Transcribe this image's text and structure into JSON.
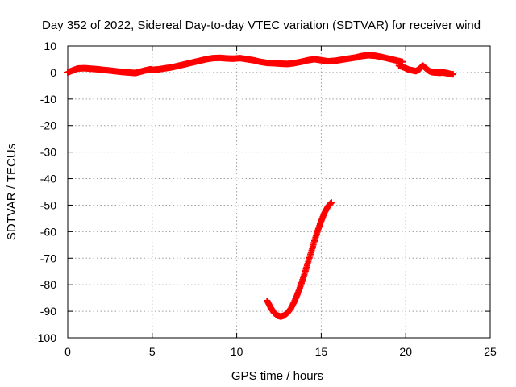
{
  "chart_data": {
    "type": "scatter",
    "title": "Day 352 of 2022, Sidereal Day-to-day VTEC variation (SDTVAR) for receiver wind",
    "xlabel": "GPS time / hours",
    "ylabel": "SDTVAR / TECUs",
    "xlim": [
      0,
      25
    ],
    "ylim": [
      -100,
      10
    ],
    "xticks": [
      0,
      5,
      10,
      15,
      20,
      25
    ],
    "yticks": [
      10,
      0,
      -10,
      -20,
      -30,
      -40,
      -50,
      -60,
      -70,
      -80,
      -90,
      -100
    ],
    "grid": true,
    "legend": "none",
    "marker": "plus",
    "series": [
      {
        "name": "main",
        "color": "#ff0000",
        "x": [
          0.0,
          0.3,
          0.6,
          1.0,
          1.4,
          1.8,
          2.0,
          2.4,
          2.8,
          3.2,
          3.6,
          4.0,
          4.3,
          4.6,
          4.9,
          5.0,
          5.4,
          5.8,
          6.2,
          6.6,
          7.0,
          7.4,
          7.8,
          8.2,
          8.6,
          9.0,
          9.4,
          9.8,
          10.2,
          10.6,
          11.0,
          11.4,
          11.8,
          12.2,
          12.6,
          13.0,
          13.4,
          13.8,
          14.2,
          14.6,
          15.0,
          15.4,
          15.8,
          16.2,
          16.6,
          17.0,
          17.4,
          17.8,
          18.2,
          18.6,
          19.0,
          19.4,
          19.8
        ],
        "y": [
          0.0,
          0.8,
          1.5,
          1.6,
          1.4,
          1.2,
          1.0,
          0.8,
          0.5,
          0.2,
          0.0,
          -0.2,
          0.3,
          0.8,
          1.2,
          1.0,
          1.2,
          1.6,
          2.0,
          2.6,
          3.2,
          3.8,
          4.4,
          5.0,
          5.4,
          5.5,
          5.3,
          5.2,
          5.4,
          5.0,
          4.6,
          4.0,
          3.6,
          3.5,
          3.3,
          3.2,
          3.5,
          4.0,
          4.6,
          5.0,
          4.6,
          4.2,
          4.4,
          4.8,
          5.2,
          5.6,
          6.2,
          6.5,
          6.3,
          5.8,
          5.2,
          4.6,
          4.0
        ]
      },
      {
        "name": "late-segment",
        "color": "#ff0000",
        "x": [
          19.6,
          20.0,
          20.2,
          20.4,
          20.6,
          20.8,
          21.0,
          21.2,
          21.4,
          21.6,
          21.8,
          22.0,
          22.2,
          22.4,
          22.6,
          22.8
        ],
        "y": [
          2.6,
          1.6,
          1.0,
          0.8,
          0.5,
          1.2,
          2.6,
          1.5,
          0.5,
          0.1,
          0.0,
          -0.1,
          0.0,
          -0.2,
          -0.5,
          -0.7
        ]
      },
      {
        "name": "descending-curve",
        "color": "#ff0000",
        "x": [
          11.8,
          12.0,
          12.2,
          12.4,
          12.6,
          12.8,
          13.0,
          13.2,
          13.4,
          13.6,
          13.8,
          14.0,
          14.2,
          14.4,
          14.6,
          14.8,
          15.0,
          15.2,
          15.4,
          15.6
        ],
        "y": [
          -86,
          -88.5,
          -90.5,
          -91.6,
          -92.0,
          -91.6,
          -90.6,
          -89.0,
          -86.5,
          -83.5,
          -80.0,
          -76.2,
          -72.0,
          -67.8,
          -63.5,
          -59.5,
          -56.0,
          -52.8,
          -50.5,
          -49.0
        ]
      }
    ]
  }
}
